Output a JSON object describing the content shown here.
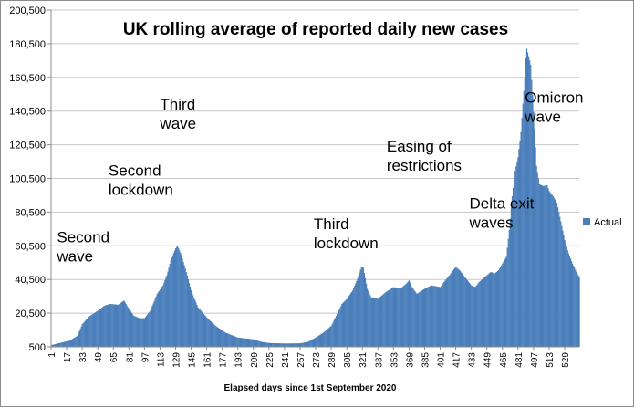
{
  "chart_data": {
    "type": "bar",
    "title": "UK rolling average of  reported daily new cases",
    "xlabel": "Elapsed days since 1st September 2020",
    "ylabel": "",
    "ylim": [
      500,
      200500
    ],
    "yticks": [
      500,
      20500,
      40500,
      60500,
      80500,
      100500,
      120500,
      140500,
      160500,
      180500,
      200500
    ],
    "ytick_labels": [
      "500",
      "20,500",
      "40,500",
      "60,500",
      "80,500",
      "100,500",
      "120,500",
      "140,500",
      "160,500",
      "180,500",
      "200,500"
    ],
    "xticks": [
      1,
      17,
      33,
      49,
      65,
      81,
      97,
      113,
      129,
      145,
      161,
      177,
      193,
      209,
      225,
      241,
      257,
      273,
      289,
      305,
      321,
      337,
      353,
      369,
      385,
      401,
      417,
      433,
      449,
      465,
      481,
      497,
      513,
      529
    ],
    "xlim": [
      1,
      544
    ],
    "grid": true,
    "legend": "right",
    "series": [
      {
        "name": "Actual",
        "color": "#4a7ebb",
        "points": [
          [
            1,
            1500
          ],
          [
            10,
            2800
          ],
          [
            20,
            4200
          ],
          [
            28,
            7000
          ],
          [
            33,
            14000
          ],
          [
            40,
            18500
          ],
          [
            49,
            22000
          ],
          [
            56,
            25000
          ],
          [
            62,
            26000
          ],
          [
            70,
            25500
          ],
          [
            76,
            28000
          ],
          [
            80,
            24000
          ],
          [
            86,
            19000
          ],
          [
            92,
            17500
          ],
          [
            97,
            17500
          ],
          [
            103,
            22000
          ],
          [
            110,
            32000
          ],
          [
            116,
            37000
          ],
          [
            120,
            43000
          ],
          [
            124,
            52000
          ],
          [
            129,
            59000
          ],
          [
            131,
            60500
          ],
          [
            135,
            55000
          ],
          [
            140,
            45000
          ],
          [
            145,
            34000
          ],
          [
            152,
            24000
          ],
          [
            161,
            18000
          ],
          [
            170,
            13000
          ],
          [
            180,
            9000
          ],
          [
            193,
            6000
          ],
          [
            209,
            5000
          ],
          [
            217,
            3500
          ],
          [
            225,
            2800
          ],
          [
            241,
            2500
          ],
          [
            257,
            2600
          ],
          [
            265,
            3500
          ],
          [
            273,
            6000
          ],
          [
            281,
            9000
          ],
          [
            289,
            13000
          ],
          [
            295,
            20000
          ],
          [
            300,
            26000
          ],
          [
            305,
            29000
          ],
          [
            311,
            34000
          ],
          [
            316,
            41000
          ],
          [
            320,
            48000
          ],
          [
            322,
            47500
          ],
          [
            326,
            35000
          ],
          [
            330,
            30000
          ],
          [
            337,
            29000
          ],
          [
            345,
            33000
          ],
          [
            353,
            36000
          ],
          [
            360,
            35000
          ],
          [
            366,
            38000
          ],
          [
            369,
            40000
          ],
          [
            372,
            36000
          ],
          [
            377,
            32000
          ],
          [
            385,
            35000
          ],
          [
            392,
            37000
          ],
          [
            401,
            36000
          ],
          [
            405,
            39000
          ],
          [
            409,
            42000
          ],
          [
            413,
            45000
          ],
          [
            417,
            48000
          ],
          [
            421,
            46000
          ],
          [
            425,
            43000
          ],
          [
            429,
            40000
          ],
          [
            433,
            37000
          ],
          [
            437,
            36000
          ],
          [
            441,
            39000
          ],
          [
            445,
            41000
          ],
          [
            449,
            43000
          ],
          [
            453,
            45000
          ],
          [
            457,
            44000
          ],
          [
            461,
            46000
          ],
          [
            465,
            50000
          ],
          [
            469,
            54000
          ],
          [
            472,
            70000
          ],
          [
            475,
            90000
          ],
          [
            478,
            105000
          ],
          [
            481,
            113000
          ],
          [
            484,
            128000
          ],
          [
            486,
            145000
          ],
          [
            488,
            160000
          ],
          [
            489,
            172000
          ],
          [
            490,
            177500
          ],
          [
            492,
            173000
          ],
          [
            494,
            168000
          ],
          [
            496,
            150000
          ],
          [
            498,
            130000
          ],
          [
            500,
            108000
          ],
          [
            503,
            97000
          ],
          [
            507,
            96000
          ],
          [
            511,
            96500
          ],
          [
            513,
            93000
          ],
          [
            517,
            90000
          ],
          [
            521,
            86000
          ],
          [
            525,
            75000
          ],
          [
            529,
            64000
          ],
          [
            533,
            56000
          ],
          [
            537,
            50000
          ],
          [
            541,
            45000
          ],
          [
            544,
            42000
          ]
        ]
      }
    ],
    "annotations": [
      {
        "lines": [
          "Second",
          "wave"
        ],
        "x": 7,
        "y": 62500
      },
      {
        "lines": [
          "Second",
          "lockdown"
        ],
        "x": 60,
        "y": 102000
      },
      {
        "lines": [
          "Third",
          "wave"
        ],
        "x": 113,
        "y": 141500
      },
      {
        "lines": [
          "Third",
          "lockdown"
        ],
        "x": 271,
        "y": 70500
      },
      {
        "lines": [
          "Easing of",
          "restrictions"
        ],
        "x": 346,
        "y": 116500
      },
      {
        "lines": [
          "Delta exit",
          "waves"
        ],
        "x": 431,
        "y": 82500
      },
      {
        "lines": [
          "Omicron",
          "wave"
        ],
        "x": 488,
        "y": 145500
      }
    ]
  }
}
